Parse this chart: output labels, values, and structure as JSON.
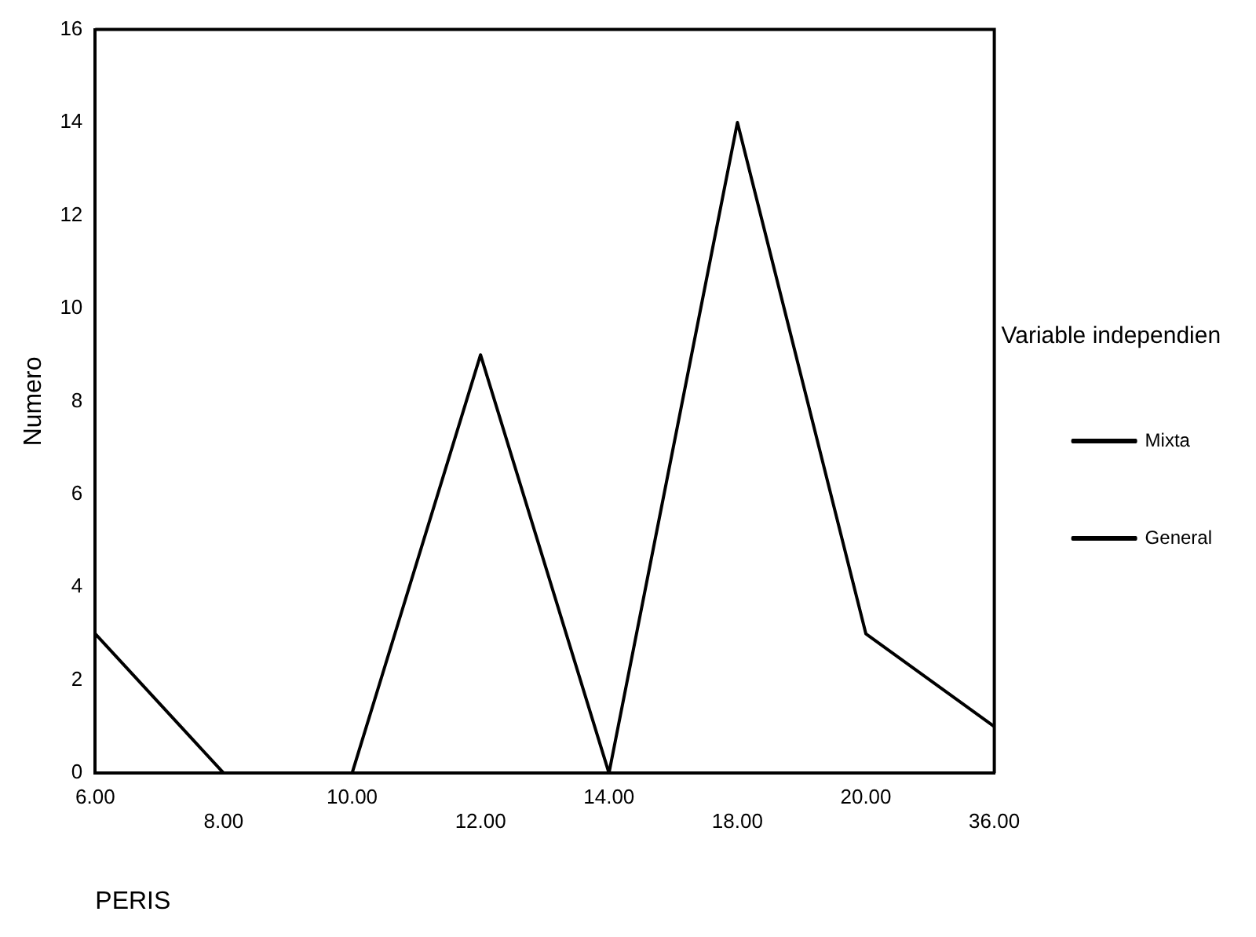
{
  "chart_data": {
    "type": "line",
    "xlabel": "PERIS",
    "ylabel": "Numero",
    "legend_title": "Variable independien",
    "categories": [
      "6.00",
      "8.00",
      "10.00",
      "12.00",
      "14.00",
      "18.00",
      "20.00",
      "36.00"
    ],
    "series": [
      {
        "name": "Mixta",
        "color": "#000000",
        "values": [
          null,
          null,
          null,
          null,
          null,
          null,
          null,
          null
        ]
      },
      {
        "name": "General",
        "color": "#000000",
        "values": [
          3,
          0,
          0,
          9,
          0,
          14,
          3,
          1
        ]
      }
    ],
    "ylim": [
      0,
      16
    ],
    "yticks": [
      0,
      2,
      4,
      6,
      8,
      10,
      12,
      14,
      16
    ],
    "grid": false,
    "legend": "right",
    "marker": "none",
    "line_style": "solid"
  }
}
